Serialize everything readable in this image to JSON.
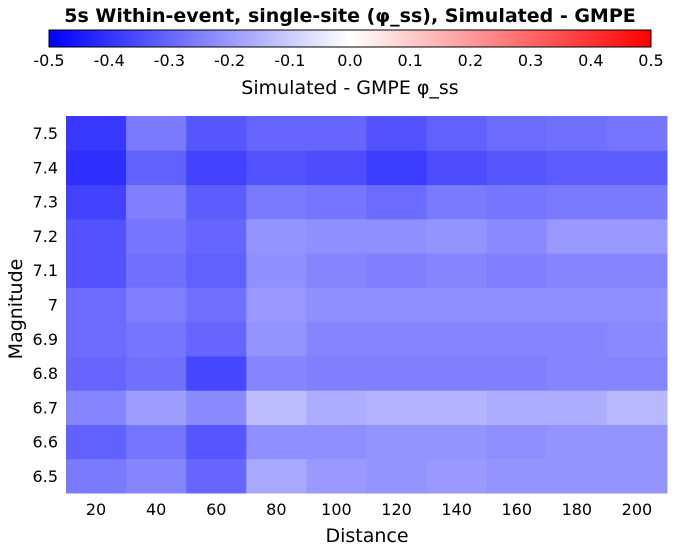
{
  "chart_data": {
    "type": "heatmap",
    "title": "5s Within-event, single-site (φ_ss), Simulated - GMPE",
    "xlabel": "Distance",
    "ylabel": "Magnitude",
    "colorbar": {
      "label": "Simulated - GMPE φ_ss",
      "min": -0.5,
      "max": 0.5,
      "ticks": [
        "-0.5",
        "-0.4",
        "-0.3",
        "-0.2",
        "-0.1",
        "0.0",
        "0.1",
        "0.2",
        "0.3",
        "0.4",
        "0.5"
      ],
      "colors": {
        "low": "#0000ff",
        "mid": "#ffffff",
        "high": "#ff0000"
      }
    },
    "x": [
      "20",
      "40",
      "60",
      "80",
      "100",
      "120",
      "140",
      "160",
      "180",
      "200"
    ],
    "y": [
      "6.5",
      "6.6",
      "6.7",
      "6.8",
      "6.9",
      "7",
      "7.1",
      "7.2",
      "7.3",
      "7.4",
      "7.5"
    ],
    "values": [
      [
        -0.26,
        -0.24,
        -0.3,
        -0.17,
        -0.2,
        -0.21,
        -0.2,
        -0.21,
        -0.21,
        -0.21
      ],
      [
        -0.31,
        -0.27,
        -0.33,
        -0.22,
        -0.22,
        -0.21,
        -0.21,
        -0.22,
        -0.21,
        -0.21
      ],
      [
        -0.24,
        -0.19,
        -0.23,
        -0.13,
        -0.16,
        -0.15,
        -0.15,
        -0.16,
        -0.16,
        -0.14
      ],
      [
        -0.3,
        -0.28,
        -0.36,
        -0.24,
        -0.25,
        -0.25,
        -0.25,
        -0.25,
        -0.24,
        -0.24
      ],
      [
        -0.29,
        -0.27,
        -0.3,
        -0.21,
        -0.24,
        -0.24,
        -0.24,
        -0.24,
        -0.24,
        -0.23
      ],
      [
        -0.29,
        -0.25,
        -0.28,
        -0.2,
        -0.22,
        -0.22,
        -0.22,
        -0.22,
        -0.22,
        -0.22
      ],
      [
        -0.34,
        -0.28,
        -0.31,
        -0.22,
        -0.24,
        -0.25,
        -0.24,
        -0.25,
        -0.24,
        -0.24
      ],
      [
        -0.34,
        -0.27,
        -0.3,
        -0.21,
        -0.22,
        -0.22,
        -0.21,
        -0.23,
        -0.2,
        -0.2
      ],
      [
        -0.37,
        -0.25,
        -0.32,
        -0.26,
        -0.27,
        -0.29,
        -0.26,
        -0.27,
        -0.26,
        -0.26
      ],
      [
        -0.41,
        -0.31,
        -0.37,
        -0.34,
        -0.35,
        -0.38,
        -0.35,
        -0.33,
        -0.32,
        -0.32
      ],
      [
        -0.39,
        -0.26,
        -0.33,
        -0.3,
        -0.3,
        -0.34,
        -0.31,
        -0.29,
        -0.28,
        -0.27
      ]
    ]
  }
}
